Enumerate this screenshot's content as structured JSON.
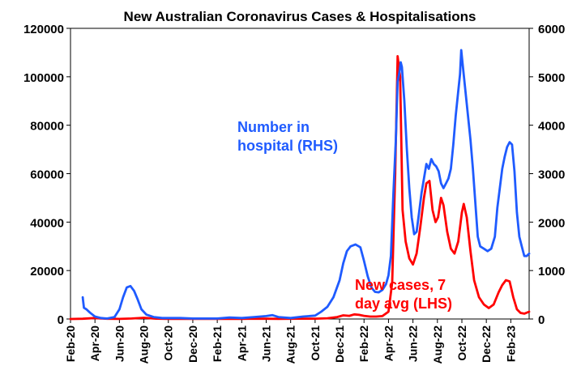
{
  "chart_data": {
    "type": "line",
    "title": "New Australian Coronavirus Cases & Hospitalisations",
    "x_labels": [
      "Feb-20",
      "Apr-20",
      "Jun-20",
      "Aug-20",
      "Oct-20",
      "Dec-20",
      "Feb-21",
      "Apr-21",
      "Jun-21",
      "Aug-21",
      "Oct-21",
      "Dec-21",
      "Feb-22",
      "Apr-22",
      "Jun-22",
      "Aug-22",
      "Oct-22",
      "Dec-22",
      "Feb-23"
    ],
    "x_range_months": [
      0,
      37.5
    ],
    "y_left": {
      "min": 0,
      "max": 120000,
      "ticks": [
        0,
        20000,
        40000,
        60000,
        80000,
        100000,
        120000
      ]
    },
    "y_right": {
      "min": 0,
      "max": 6000,
      "ticks": [
        0,
        1000,
        2000,
        3000,
        4000,
        5000,
        6000
      ]
    },
    "series": [
      {
        "name": "New cases, 7 day avg (LHS)",
        "axis": "left",
        "color": "#ff0000",
        "points": [
          [
            0,
            0
          ],
          [
            1,
            100
          ],
          [
            2,
            400
          ],
          [
            2.5,
            200
          ],
          [
            3,
            100
          ],
          [
            4,
            50
          ],
          [
            5,
            200
          ],
          [
            6,
            500
          ],
          [
            7,
            150
          ],
          [
            8,
            80
          ],
          [
            9,
            30
          ],
          [
            10,
            20
          ],
          [
            11,
            20
          ],
          [
            12,
            20
          ],
          [
            13,
            20
          ],
          [
            14,
            50
          ],
          [
            15,
            150
          ],
          [
            16,
            100
          ],
          [
            17,
            80
          ],
          [
            18,
            100
          ],
          [
            19,
            120
          ],
          [
            20,
            150
          ],
          [
            21,
            300
          ],
          [
            21.8,
            800
          ],
          [
            22.3,
            1500
          ],
          [
            22.8,
            1300
          ],
          [
            23.2,
            1900
          ],
          [
            23.6,
            1700
          ],
          [
            24,
            1300
          ],
          [
            24.5,
            1000
          ],
          [
            25,
            1000
          ],
          [
            25.5,
            1200
          ],
          [
            26,
            3000
          ],
          [
            26.3,
            15000
          ],
          [
            26.55,
            60000
          ],
          [
            26.75,
            108500
          ],
          [
            26.95,
            100000
          ],
          [
            27.15,
            45000
          ],
          [
            27.4,
            32000
          ],
          [
            27.7,
            25000
          ],
          [
            28,
            22500
          ],
          [
            28.3,
            27000
          ],
          [
            28.6,
            38000
          ],
          [
            28.9,
            50000
          ],
          [
            29.1,
            56000
          ],
          [
            29.35,
            57000
          ],
          [
            29.6,
            45000
          ],
          [
            29.85,
            40000
          ],
          [
            30.05,
            42000
          ],
          [
            30.3,
            50000
          ],
          [
            30.5,
            47000
          ],
          [
            30.8,
            36000
          ],
          [
            31.1,
            29000
          ],
          [
            31.4,
            27000
          ],
          [
            31.7,
            32000
          ],
          [
            32,
            44000
          ],
          [
            32.15,
            47500
          ],
          [
            32.4,
            42000
          ],
          [
            32.7,
            28000
          ],
          [
            33,
            16000
          ],
          [
            33.4,
            9000
          ],
          [
            33.8,
            6000
          ],
          [
            34.2,
            4500
          ],
          [
            34.6,
            6000
          ],
          [
            35,
            11000
          ],
          [
            35.3,
            14000
          ],
          [
            35.6,
            16000
          ],
          [
            35.9,
            15500
          ],
          [
            36.2,
            9000
          ],
          [
            36.5,
            4000
          ],
          [
            36.8,
            2500
          ],
          [
            37.1,
            2200
          ],
          [
            37.5,
            3000
          ]
        ]
      },
      {
        "name": "Number in hospital (RHS)",
        "axis": "right",
        "color": "#1f5bff",
        "points": [
          [
            1,
            450
          ],
          [
            1.02,
            400
          ],
          [
            1.1,
            230
          ],
          [
            1.3,
            200
          ],
          [
            1.6,
            130
          ],
          [
            2,
            50
          ],
          [
            2.5,
            20
          ],
          [
            3,
            10
          ],
          [
            3.6,
            40
          ],
          [
            4,
            200
          ],
          [
            4.3,
            450
          ],
          [
            4.6,
            650
          ],
          [
            4.9,
            680
          ],
          [
            5.2,
            580
          ],
          [
            5.5,
            400
          ],
          [
            5.8,
            200
          ],
          [
            6.2,
            90
          ],
          [
            6.8,
            40
          ],
          [
            7.5,
            20
          ],
          [
            8,
            20
          ],
          [
            9,
            20
          ],
          [
            10,
            10
          ],
          [
            11,
            10
          ],
          [
            12,
            10
          ],
          [
            13,
            30
          ],
          [
            14,
            20
          ],
          [
            15,
            40
          ],
          [
            16,
            60
          ],
          [
            16.5,
            80
          ],
          [
            17,
            40
          ],
          [
            18,
            20
          ],
          [
            19,
            50
          ],
          [
            20,
            70
          ],
          [
            20.5,
            150
          ],
          [
            21,
            250
          ],
          [
            21.5,
            450
          ],
          [
            22,
            800
          ],
          [
            22.3,
            1150
          ],
          [
            22.6,
            1400
          ],
          [
            22.9,
            1500
          ],
          [
            23.3,
            1540
          ],
          [
            23.7,
            1480
          ],
          [
            24,
            1200
          ],
          [
            24.3,
            880
          ],
          [
            24.6,
            650
          ],
          [
            24.9,
            560
          ],
          [
            25.2,
            550
          ],
          [
            25.5,
            600
          ],
          [
            25.8,
            720
          ],
          [
            26,
            900
          ],
          [
            26.2,
            1300
          ],
          [
            26.4,
            2600
          ],
          [
            26.6,
            3700
          ],
          [
            26.75,
            4900
          ],
          [
            26.9,
            5100
          ],
          [
            27,
            5300
          ],
          [
            27.1,
            5200
          ],
          [
            27.3,
            4500
          ],
          [
            27.5,
            3500
          ],
          [
            27.7,
            2700
          ],
          [
            27.9,
            2100
          ],
          [
            28.1,
            1750
          ],
          [
            28.3,
            1800
          ],
          [
            28.5,
            2200
          ],
          [
            28.7,
            2600
          ],
          [
            28.9,
            2900
          ],
          [
            29.1,
            3200
          ],
          [
            29.3,
            3100
          ],
          [
            29.5,
            3300
          ],
          [
            29.7,
            3200
          ],
          [
            29.9,
            3150
          ],
          [
            30.1,
            3050
          ],
          [
            30.3,
            2800
          ],
          [
            30.5,
            2700
          ],
          [
            30.7,
            2800
          ],
          [
            30.9,
            2900
          ],
          [
            31.1,
            3100
          ],
          [
            31.3,
            3600
          ],
          [
            31.5,
            4200
          ],
          [
            31.7,
            4700
          ],
          [
            31.85,
            5050
          ],
          [
            31.95,
            5550
          ],
          [
            32.05,
            5300
          ],
          [
            32.25,
            4800
          ],
          [
            32.5,
            4200
          ],
          [
            32.7,
            3700
          ],
          [
            32.9,
            3100
          ],
          [
            33.1,
            2400
          ],
          [
            33.3,
            1700
          ],
          [
            33.5,
            1500
          ],
          [
            33.8,
            1450
          ],
          [
            34.1,
            1400
          ],
          [
            34.4,
            1450
          ],
          [
            34.7,
            1700
          ],
          [
            34.9,
            2300
          ],
          [
            35.1,
            2700
          ],
          [
            35.3,
            3100
          ],
          [
            35.5,
            3350
          ],
          [
            35.7,
            3550
          ],
          [
            35.9,
            3650
          ],
          [
            36.1,
            3600
          ],
          [
            36.3,
            3050
          ],
          [
            36.5,
            2200
          ],
          [
            36.7,
            1700
          ],
          [
            36.9,
            1500
          ],
          [
            37.1,
            1300
          ],
          [
            37.3,
            1300
          ],
          [
            37.5,
            1350
          ]
        ]
      }
    ],
    "annotations": {
      "hospital_line1": "Number in",
      "hospital_line2": "hospital (RHS)",
      "cases_line1": "New cases, 7",
      "cases_line2": "day avg (LHS)"
    }
  }
}
